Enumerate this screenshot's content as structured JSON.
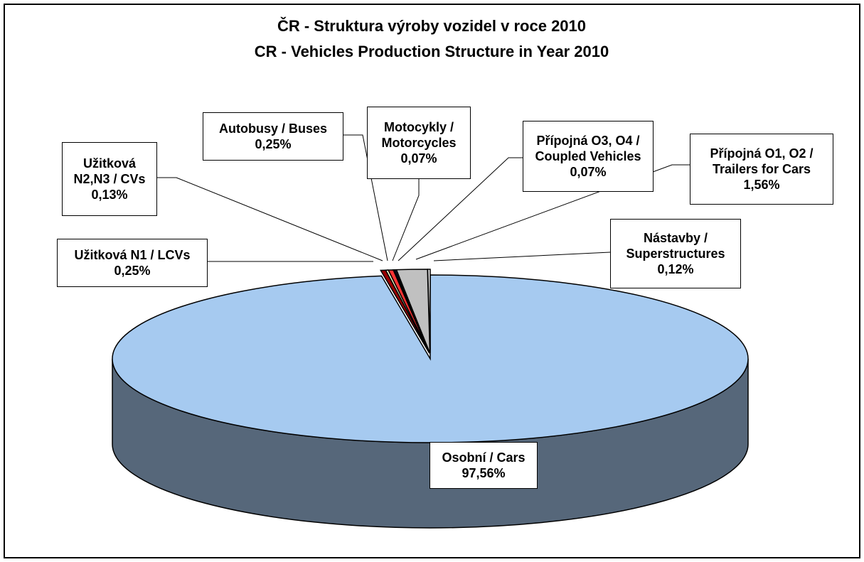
{
  "chart_data": {
    "type": "pie",
    "title": "ČR - Struktura výroby vozidel v roce 2010",
    "subtitle": "CR - Vehicles Production Structure in Year 2010",
    "categories": [
      "Osobní / Cars",
      "Užitková N1 / LCVs",
      "Užitková N2,N3 / CVs",
      "Autobusy / Buses",
      "Motocykly / Motorcycles",
      "Přípojná O3, O4 / Coupled Vehicles",
      "Přípojná O1, O2 / Trailers for Cars",
      "Nástavby / Superstructures"
    ],
    "values": [
      97.56,
      0.25,
      0.13,
      0.25,
      0.07,
      0.07,
      1.56,
      0.12
    ],
    "value_labels": [
      "97,56%",
      "0,25%",
      "0,13%",
      "0,25%",
      "0,07%",
      "0,07%",
      "1,56%",
      "0,12%"
    ],
    "colors": [
      "#a6caf0",
      "#990000",
      "#ffffcc",
      "#ff3333",
      "#660066",
      "#333399",
      "#c0c0c0",
      "#ffffff"
    ]
  }
}
